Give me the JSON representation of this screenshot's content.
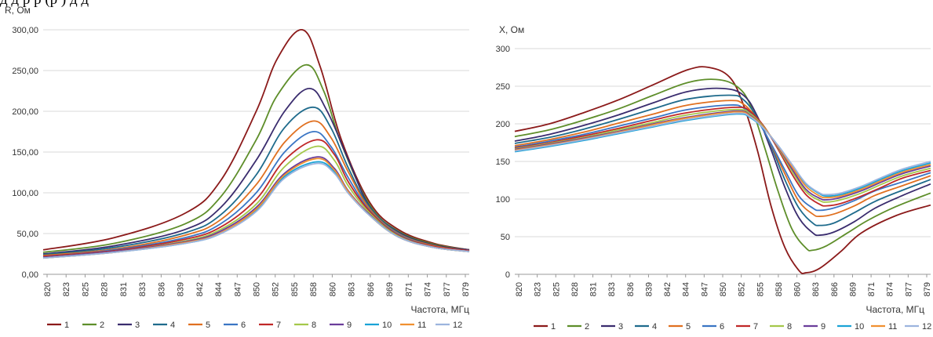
{
  "header_fragment": "д                              д                        р                            р                        (р       )          д                    д",
  "chart_data": [
    {
      "type": "line",
      "ylabel": "R, Ом",
      "xlabel": "Частота, МГц",
      "ylim": [
        0,
        300
      ],
      "yticks": [
        "0,00",
        "50,00",
        "100,00",
        "150,00",
        "200,00",
        "250,00",
        "300,00"
      ],
      "ytick_values": [
        0,
        50,
        100,
        150,
        200,
        250,
        300
      ],
      "xticks": [
        "820",
        "823",
        "825",
        "828",
        "831",
        "833",
        "836",
        "839",
        "842",
        "844",
        "847",
        "850",
        "852",
        "855",
        "858",
        "860",
        "863",
        "866",
        "869",
        "871",
        "874",
        "877",
        "879"
      ],
      "xrange": [
        820,
        880
      ],
      "grid": true,
      "legend_position": "bottom",
      "series": [
        {
          "name": "1",
          "color": "#8B1A1A",
          "peak_x": 856.5,
          "x": [
            820,
            830,
            840,
            845,
            850,
            853,
            856.5,
            859,
            862,
            866,
            870,
            875,
            880
          ],
          "y": [
            30,
            45,
            75,
            115,
            200,
            265,
            300,
            255,
            165,
            88,
            55,
            38,
            30
          ]
        },
        {
          "name": "2",
          "color": "#5E8E2A",
          "peak_x": 857.0,
          "x": [
            820,
            830,
            840,
            845,
            850,
            853,
            857,
            859.5,
            862,
            866,
            870,
            875,
            880
          ],
          "y": [
            27,
            38,
            62,
            95,
            165,
            220,
            257,
            225,
            160,
            85,
            53,
            37,
            30
          ]
        },
        {
          "name": "3",
          "color": "#3A2C6E",
          "peak_x": 857.5,
          "x": [
            820,
            830,
            840,
            845,
            850,
            854,
            857.5,
            860,
            863,
            866,
            870,
            875,
            880
          ],
          "y": [
            25,
            35,
            55,
            82,
            140,
            200,
            228,
            200,
            140,
            83,
            52,
            36,
            30
          ]
        },
        {
          "name": "4",
          "color": "#1F6B8C",
          "peak_x": 858.0,
          "x": [
            820,
            830,
            840,
            845,
            850,
            854,
            858,
            860.5,
            863,
            866,
            870,
            875,
            880
          ],
          "y": [
            24,
            33,
            51,
            73,
            122,
            180,
            205,
            180,
            130,
            82,
            51,
            35,
            29
          ]
        },
        {
          "name": "5",
          "color": "#E07020",
          "peak_x": 858.0,
          "x": [
            820,
            830,
            840,
            845,
            850,
            854,
            858,
            860.5,
            863,
            866,
            870,
            875,
            880
          ],
          "y": [
            23,
            31,
            48,
            67,
            110,
            162,
            188,
            168,
            125,
            80,
            50,
            35,
            29
          ]
        },
        {
          "name": "6",
          "color": "#3A75C4",
          "peak_x": 858.0,
          "x": [
            820,
            830,
            840,
            845,
            850,
            854,
            858,
            860.5,
            863,
            866,
            870,
            875,
            880
          ],
          "y": [
            22,
            30,
            45,
            62,
            100,
            150,
            175,
            157,
            118,
            78,
            49,
            34,
            29
          ]
        },
        {
          "name": "7",
          "color": "#C02828",
          "peak_x": 858.5,
          "x": [
            820,
            830,
            840,
            845,
            850,
            854,
            858.5,
            861,
            863,
            866,
            870,
            875,
            880
          ],
          "y": [
            22,
            29,
            43,
            58,
            92,
            140,
            165,
            147,
            113,
            77,
            48,
            34,
            29
          ]
        },
        {
          "name": "8",
          "color": "#A4C84A",
          "peak_x": 858.5,
          "x": [
            820,
            830,
            840,
            845,
            850,
            854,
            858.5,
            861,
            863,
            866,
            870,
            875,
            880
          ],
          "y": [
            21,
            28,
            41,
            55,
            86,
            132,
            157,
            140,
            108,
            75,
            47,
            33,
            28
          ]
        },
        {
          "name": "9",
          "color": "#6A3D9A",
          "peak_x": 858.5,
          "x": [
            820,
            830,
            840,
            845,
            850,
            854,
            858.5,
            861,
            863,
            866,
            870,
            875,
            880
          ],
          "y": [
            21,
            28,
            40,
            53,
            82,
            124,
            144,
            130,
            102,
            73,
            46,
            33,
            28
          ]
        },
        {
          "name": "10",
          "color": "#1AA3D6",
          "peak_x": 858.5,
          "x": [
            820,
            830,
            840,
            845,
            850,
            854,
            858.5,
            861,
            863,
            866,
            870,
            875,
            880
          ],
          "y": [
            20,
            27,
            38,
            50,
            78,
            120,
            138,
            126,
            100,
            72,
            46,
            33,
            28
          ]
        },
        {
          "name": "11",
          "color": "#F09030",
          "peak_x": 858.5,
          "x": [
            820,
            830,
            840,
            845,
            850,
            854,
            858.5,
            861,
            863,
            866,
            870,
            875,
            880
          ],
          "y": [
            20,
            27,
            39,
            51,
            80,
            122,
            142,
            128,
            101,
            72,
            46,
            33,
            28
          ]
        },
        {
          "name": "12",
          "color": "#9CB4DE",
          "peak_x": 858.5,
          "x": [
            820,
            830,
            840,
            845,
            850,
            854,
            858.5,
            861,
            863,
            866,
            870,
            875,
            880
          ],
          "y": [
            20,
            27,
            38,
            50,
            77,
            118,
            136,
            124,
            99,
            72,
            46,
            33,
            28
          ]
        }
      ]
    },
    {
      "type": "line",
      "ylabel": "X, Ом",
      "xlabel": "Частота, МГц",
      "ylim": [
        0,
        300
      ],
      "yticks": [
        "0",
        "50",
        "100",
        "150",
        "200",
        "250",
        "300"
      ],
      "ytick_values": [
        0,
        50,
        100,
        150,
        200,
        250,
        300
      ],
      "xticks": [
        "820",
        "823",
        "825",
        "828",
        "831",
        "833",
        "836",
        "839",
        "842",
        "844",
        "847",
        "850",
        "852",
        "855",
        "858",
        "860",
        "863",
        "866",
        "869",
        "871",
        "874",
        "877",
        "879"
      ],
      "xrange": [
        820,
        880
      ],
      "grid": true,
      "legend_position": "bottom",
      "series": [
        {
          "name": "1",
          "color": "#8B1A1A",
          "x": [
            820,
            825,
            830,
            835,
            840,
            845,
            848,
            851,
            853,
            855,
            857,
            859,
            861,
            862,
            864,
            867,
            870,
            875,
            880
          ],
          "y": [
            190,
            200,
            215,
            232,
            252,
            272,
            275,
            262,
            225,
            165,
            90,
            35,
            5,
            2,
            8,
            30,
            55,
            78,
            92
          ]
        },
        {
          "name": "2",
          "color": "#5E8E2A",
          "x": [
            820,
            825,
            830,
            835,
            840,
            845,
            849,
            852,
            854,
            856,
            858,
            860,
            862,
            863,
            865,
            868,
            871,
            875,
            880
          ],
          "y": [
            183,
            192,
            205,
            220,
            238,
            255,
            259,
            250,
            225,
            170,
            110,
            60,
            35,
            32,
            38,
            55,
            72,
            90,
            108
          ]
        },
        {
          "name": "3",
          "color": "#3A2C6E",
          "x": [
            820,
            825,
            830,
            835,
            840,
            845,
            850,
            853,
            855,
            857,
            859,
            861,
            863,
            864,
            866,
            869,
            872,
            876,
            880
          ],
          "y": [
            177,
            186,
            198,
            212,
            228,
            243,
            247,
            238,
            210,
            165,
            115,
            75,
            55,
            52,
            56,
            70,
            88,
            105,
            120
          ]
        },
        {
          "name": "4",
          "color": "#1F6B8C",
          "x": [
            820,
            825,
            830,
            835,
            840,
            845,
            851,
            853,
            855,
            857,
            859,
            861,
            863,
            864,
            866,
            869,
            872,
            876,
            880
          ],
          "y": [
            174,
            182,
            193,
            206,
            220,
            233,
            238,
            232,
            208,
            170,
            125,
            88,
            68,
            65,
            68,
            82,
            97,
            112,
            126
          ]
        },
        {
          "name": "5",
          "color": "#E07020",
          "x": [
            820,
            825,
            830,
            835,
            840,
            845,
            851,
            853,
            855,
            857,
            859,
            861,
            863,
            864,
            866,
            869,
            872,
            876,
            880
          ],
          "y": [
            171,
            179,
            189,
            201,
            213,
            225,
            231,
            226,
            206,
            172,
            133,
            97,
            80,
            77,
            80,
            91,
            105,
            118,
            131
          ]
        },
        {
          "name": "6",
          "color": "#3A75C4",
          "x": [
            820,
            825,
            830,
            835,
            840,
            845,
            851,
            853,
            855,
            857,
            859,
            861,
            863,
            864,
            866,
            869,
            872,
            876,
            880
          ],
          "y": [
            169,
            177,
            186,
            197,
            208,
            219,
            225,
            221,
            204,
            173,
            138,
            104,
            88,
            85,
            88,
            98,
            111,
            123,
            135
          ]
        },
        {
          "name": "7",
          "color": "#C02828",
          "x": [
            820,
            825,
            830,
            835,
            840,
            845,
            852,
            854,
            856,
            858,
            860,
            862,
            864,
            865,
            867,
            870,
            873,
            876,
            880
          ],
          "y": [
            168,
            175,
            184,
            194,
            205,
            215,
            222,
            216,
            196,
            166,
            133,
            106,
            93,
            91,
            94,
            104,
            116,
            128,
            138
          ]
        },
        {
          "name": "8",
          "color": "#A4C84A",
          "x": [
            820,
            825,
            830,
            835,
            840,
            845,
            852,
            854,
            856,
            858,
            860,
            862,
            864,
            865,
            867,
            870,
            873,
            876,
            880
          ],
          "y": [
            167,
            174,
            182,
            192,
            202,
            212,
            219,
            213,
            195,
            168,
            137,
            110,
            98,
            96,
            99,
            108,
            120,
            131,
            141
          ]
        },
        {
          "name": "9",
          "color": "#6A3D9A",
          "x": [
            820,
            825,
            830,
            835,
            840,
            845,
            852,
            854,
            856,
            858,
            860,
            862,
            864,
            865,
            867,
            870,
            873,
            876,
            880
          ],
          "y": [
            166,
            173,
            181,
            190,
            200,
            209,
            217,
            211,
            194,
            169,
            140,
            113,
            101,
            99,
            102,
            111,
            123,
            134,
            144
          ]
        },
        {
          "name": "10",
          "color": "#1AA3D6",
          "x": [
            820,
            825,
            830,
            835,
            840,
            845,
            852,
            854,
            856,
            858,
            860,
            862,
            864,
            865,
            867,
            870,
            873,
            876,
            880
          ],
          "y": [
            163,
            170,
            178,
            187,
            196,
            205,
            213,
            208,
            193,
            171,
            145,
            120,
            107,
            104,
            106,
            115,
            127,
            138,
            148
          ]
        },
        {
          "name": "11",
          "color": "#F09030",
          "x": [
            820,
            825,
            830,
            835,
            840,
            845,
            852,
            854,
            856,
            858,
            860,
            862,
            864,
            865,
            867,
            870,
            873,
            876,
            880
          ],
          "y": [
            165,
            172,
            180,
            189,
            199,
            208,
            216,
            210,
            194,
            170,
            143,
            117,
            104,
            102,
            104,
            113,
            125,
            136,
            146
          ]
        },
        {
          "name": "12",
          "color": "#9CB4DE",
          "x": [
            820,
            825,
            830,
            835,
            840,
            845,
            852,
            854,
            856,
            858,
            860,
            862,
            864,
            865,
            867,
            870,
            873,
            876,
            880
          ],
          "y": [
            164,
            171,
            179,
            188,
            197,
            206,
            214,
            209,
            193,
            171,
            146,
            121,
            108,
            106,
            108,
            117,
            129,
            140,
            150
          ]
        }
      ]
    }
  ]
}
